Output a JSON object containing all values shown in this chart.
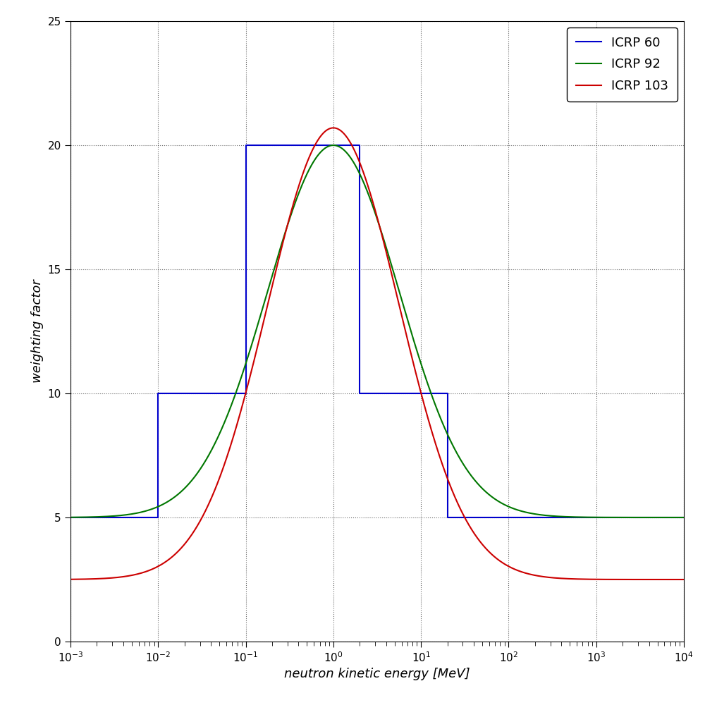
{
  "xlabel": "neutron kinetic energy [MeV]",
  "ylabel": "weighting factor",
  "xlim": [
    0.001,
    10000.0
  ],
  "ylim": [
    0,
    25
  ],
  "yticks": [
    0,
    5,
    10,
    15,
    20,
    25
  ],
  "background_color": "#ffffff",
  "legend_labels": [
    "ICRP 60",
    "ICRP 92",
    "ICRP 103"
  ],
  "legend_colors": [
    "#0000cc",
    "#007700",
    "#cc0000"
  ],
  "icrp60_x": [
    0.001,
    0.01,
    0.01,
    0.1,
    0.1,
    2.0,
    2.0,
    20.0,
    20.0,
    100.0,
    100.0,
    10000.0
  ],
  "icrp60_y": [
    5,
    5,
    10,
    10,
    20,
    20,
    10,
    10,
    5,
    5,
    5,
    5
  ],
  "figsize": [
    10.0,
    10.0
  ],
  "dpi": 100,
  "fontsize_label": 13,
  "fontsize_tick": 11,
  "fontsize_legend": 13,
  "linewidth": 1.5
}
